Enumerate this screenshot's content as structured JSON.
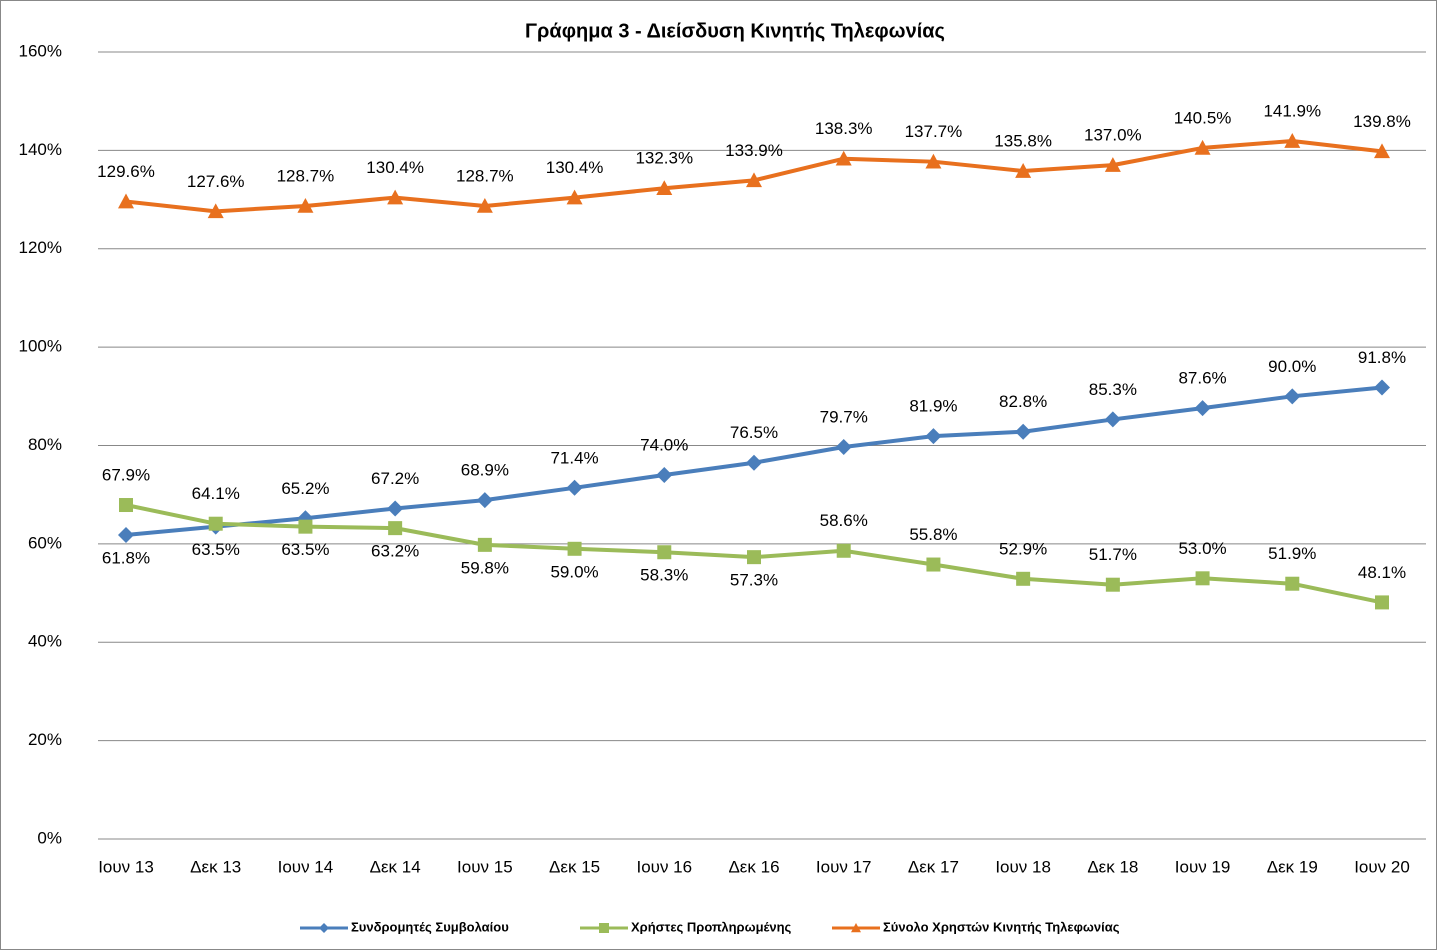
{
  "chart_data": {
    "type": "line",
    "title": "Γράφημα 3 - Διείσδυση Κινητής Τηλεφωνίας",
    "categories": [
      "Ιουν 13",
      "Δεκ 13",
      "Ιουν 14",
      "Δεκ 14",
      "Ιουν 15",
      "Δεκ 15",
      "Ιουν 16",
      "Δεκ 16",
      "Ιουν 17",
      "Δεκ 17",
      "Ιουν 18",
      "Δεκ 18",
      "Ιουν 19",
      "Δεκ 19",
      "Ιουν 20"
    ],
    "series": [
      {
        "name": "Συνδρομητές Συμβολαίου",
        "color": "#4a7ebb",
        "marker": "diamond",
        "values": [
          61.8,
          63.5,
          65.2,
          67.2,
          68.9,
          71.4,
          74.0,
          76.5,
          79.7,
          81.9,
          82.8,
          85.3,
          87.6,
          90.0,
          91.8
        ],
        "value_labels": [
          "61.8%",
          "63.5%",
          "65.2%",
          "67.2%",
          "68.9%",
          "71.4%",
          "74.0%",
          "76.5%",
          "79.7%",
          "81.9%",
          "82.8%",
          "85.3%",
          "87.6%",
          "90.0%",
          "91.8%"
        ]
      },
      {
        "name": "Χρήστες Προπληρωμένης",
        "color": "#9bbb59",
        "marker": "square",
        "values": [
          67.9,
          64.1,
          63.5,
          63.2,
          59.8,
          59.0,
          58.3,
          57.3,
          58.6,
          55.8,
          52.9,
          51.7,
          53.0,
          51.9,
          48.1
        ],
        "value_labels": [
          "67.9%",
          "64.1%",
          "63.5%",
          "63.2%",
          "59.8%",
          "59.0%",
          "58.3%",
          "57.3%",
          "58.6%",
          "55.8%",
          "52.9%",
          "51.7%",
          "53.0%",
          "51.9%",
          "48.1%"
        ]
      },
      {
        "name": "Σύνολο Χρηστών Κινητής Τηλεφωνίας",
        "color": "#e8701e",
        "marker": "triangle",
        "values": [
          129.6,
          127.6,
          128.7,
          130.4,
          128.7,
          130.4,
          132.3,
          133.9,
          138.3,
          137.7,
          135.8,
          137.0,
          140.5,
          141.9,
          139.8
        ],
        "value_labels": [
          "129.6%",
          "127.6%",
          "128.7%",
          "130.4%",
          "128.7%",
          "130.4%",
          "132.3%",
          "133.9%",
          "138.3%",
          "137.7%",
          "135.8%",
          "137.0%",
          "140.5%",
          "141.9%",
          "139.8%"
        ]
      }
    ],
    "ylim": [
      0,
      160
    ],
    "yticks": [
      {
        "value": 0,
        "label": "0%"
      },
      {
        "value": 20,
        "label": "20%"
      },
      {
        "value": 40,
        "label": "40%"
      },
      {
        "value": 60,
        "label": "60%"
      },
      {
        "value": 80,
        "label": "80%"
      },
      {
        "value": 100,
        "label": "100%"
      },
      {
        "value": 120,
        "label": "120%"
      },
      {
        "value": 140,
        "label": "140%"
      },
      {
        "value": 160,
        "label": "160%"
      }
    ],
    "grid": true,
    "legend": "bottom"
  }
}
